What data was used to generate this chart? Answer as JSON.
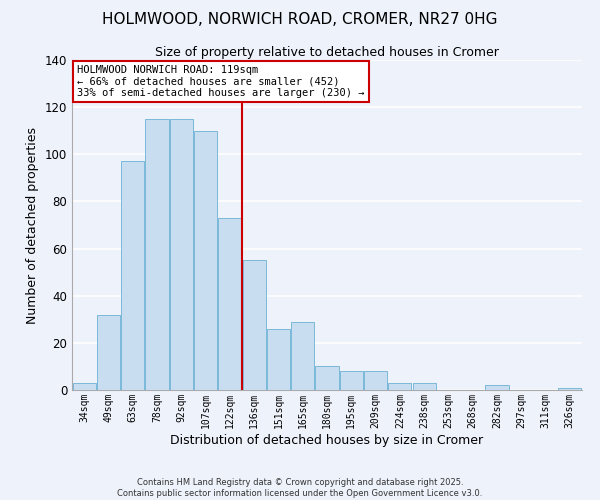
{
  "title_line1": "HOLMWOOD, NORWICH ROAD, CROMER, NR27 0HG",
  "title_line2": "Size of property relative to detached houses in Cromer",
  "xlabel": "Distribution of detached houses by size in Cromer",
  "ylabel": "Number of detached properties",
  "bar_labels": [
    "34sqm",
    "49sqm",
    "63sqm",
    "78sqm",
    "92sqm",
    "107sqm",
    "122sqm",
    "136sqm",
    "151sqm",
    "165sqm",
    "180sqm",
    "195sqm",
    "209sqm",
    "224sqm",
    "238sqm",
    "253sqm",
    "268sqm",
    "282sqm",
    "297sqm",
    "311sqm",
    "326sqm"
  ],
  "bar_values": [
    3,
    32,
    97,
    115,
    115,
    110,
    73,
    55,
    26,
    29,
    10,
    8,
    8,
    3,
    3,
    0,
    0,
    2,
    0,
    0,
    1
  ],
  "bar_color": "#c9ddf0",
  "bar_edge_color": "#7ab8d8",
  "background_color": "#eef2fb",
  "grid_color": "#ffffff",
  "vline_x_index": 6,
  "vline_color": "#cc0000",
  "annotation_text": "HOLMWOOD NORWICH ROAD: 119sqm\n← 66% of detached houses are smaller (452)\n33% of semi-detached houses are larger (230) →",
  "annotation_box_color": "#ffffff",
  "annotation_box_edge_color": "#cc0000",
  "ylim": [
    0,
    140
  ],
  "yticks": [
    0,
    20,
    40,
    60,
    80,
    100,
    120,
    140
  ],
  "footer_line1": "Contains HM Land Registry data © Crown copyright and database right 2025.",
  "footer_line2": "Contains public sector information licensed under the Open Government Licence v3.0."
}
